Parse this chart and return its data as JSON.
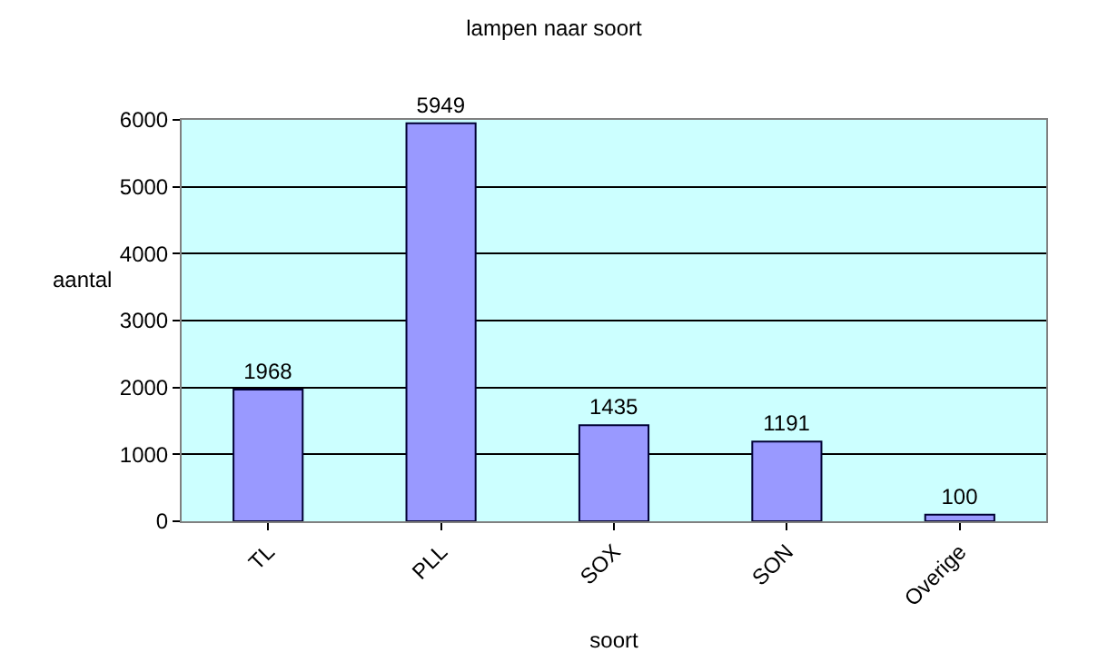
{
  "chart_data": {
    "type": "bar",
    "title": "lampen naar soort",
    "xlabel": "soort",
    "ylabel": "aantal",
    "categories": [
      "TL",
      "PLL",
      "SOX",
      "SON",
      "Overige"
    ],
    "values": [
      1968,
      5949,
      1435,
      1191,
      100
    ],
    "color": "#9999ff",
    "ylim": [
      0,
      6000
    ],
    "yticks": [
      0,
      1000,
      2000,
      3000,
      4000,
      5000,
      6000
    ],
    "grid": "y",
    "data_labels": true,
    "legend": false
  }
}
